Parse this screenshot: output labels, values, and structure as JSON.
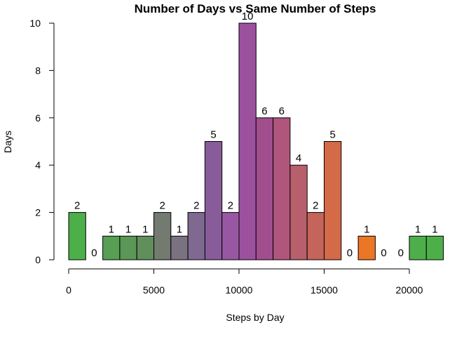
{
  "chart_data": {
    "type": "bar",
    "title": "Number of Days vs Same Number of Steps",
    "xlabel": "Steps by Day",
    "ylabel": "Days",
    "bin_width": 1000,
    "x": [
      0,
      1000,
      2000,
      3000,
      4000,
      5000,
      6000,
      7000,
      8000,
      9000,
      10000,
      11000,
      12000,
      13000,
      14000,
      15000,
      16000,
      17000,
      18000,
      19000,
      20000,
      21000
    ],
    "values": [
      2,
      0,
      1,
      1,
      1,
      2,
      1,
      2,
      5,
      2,
      10,
      6,
      6,
      4,
      2,
      5,
      0,
      1,
      0,
      0,
      1,
      1
    ],
    "colors": [
      "#4daf4a",
      "#51a74e",
      "#569f53",
      "#5b9757",
      "#608f5c",
      "#737a70",
      "#7a7280",
      "#7f6990",
      "#885c9a",
      "#9857a3",
      "#9c519f",
      "#a14e8f",
      "#b0567d",
      "#b85f6c",
      "#c5645a",
      "#d46a48",
      "#e07036",
      "#eb7626",
      "#6fae3c",
      "#5aaf45",
      "#4eaf4a",
      "#4daf4a"
    ],
    "xticks": [
      0,
      5000,
      10000,
      15000,
      20000
    ],
    "xtick_labels": [
      "0",
      "5000",
      "10000",
      "15000",
      "20000"
    ],
    "yticks": [
      0,
      2,
      4,
      6,
      8,
      10
    ],
    "ytick_labels": [
      "0",
      "2",
      "4",
      "6",
      "8",
      "10"
    ],
    "xlim": [
      0,
      22000
    ],
    "ylim": [
      0,
      10
    ],
    "grid": false
  }
}
